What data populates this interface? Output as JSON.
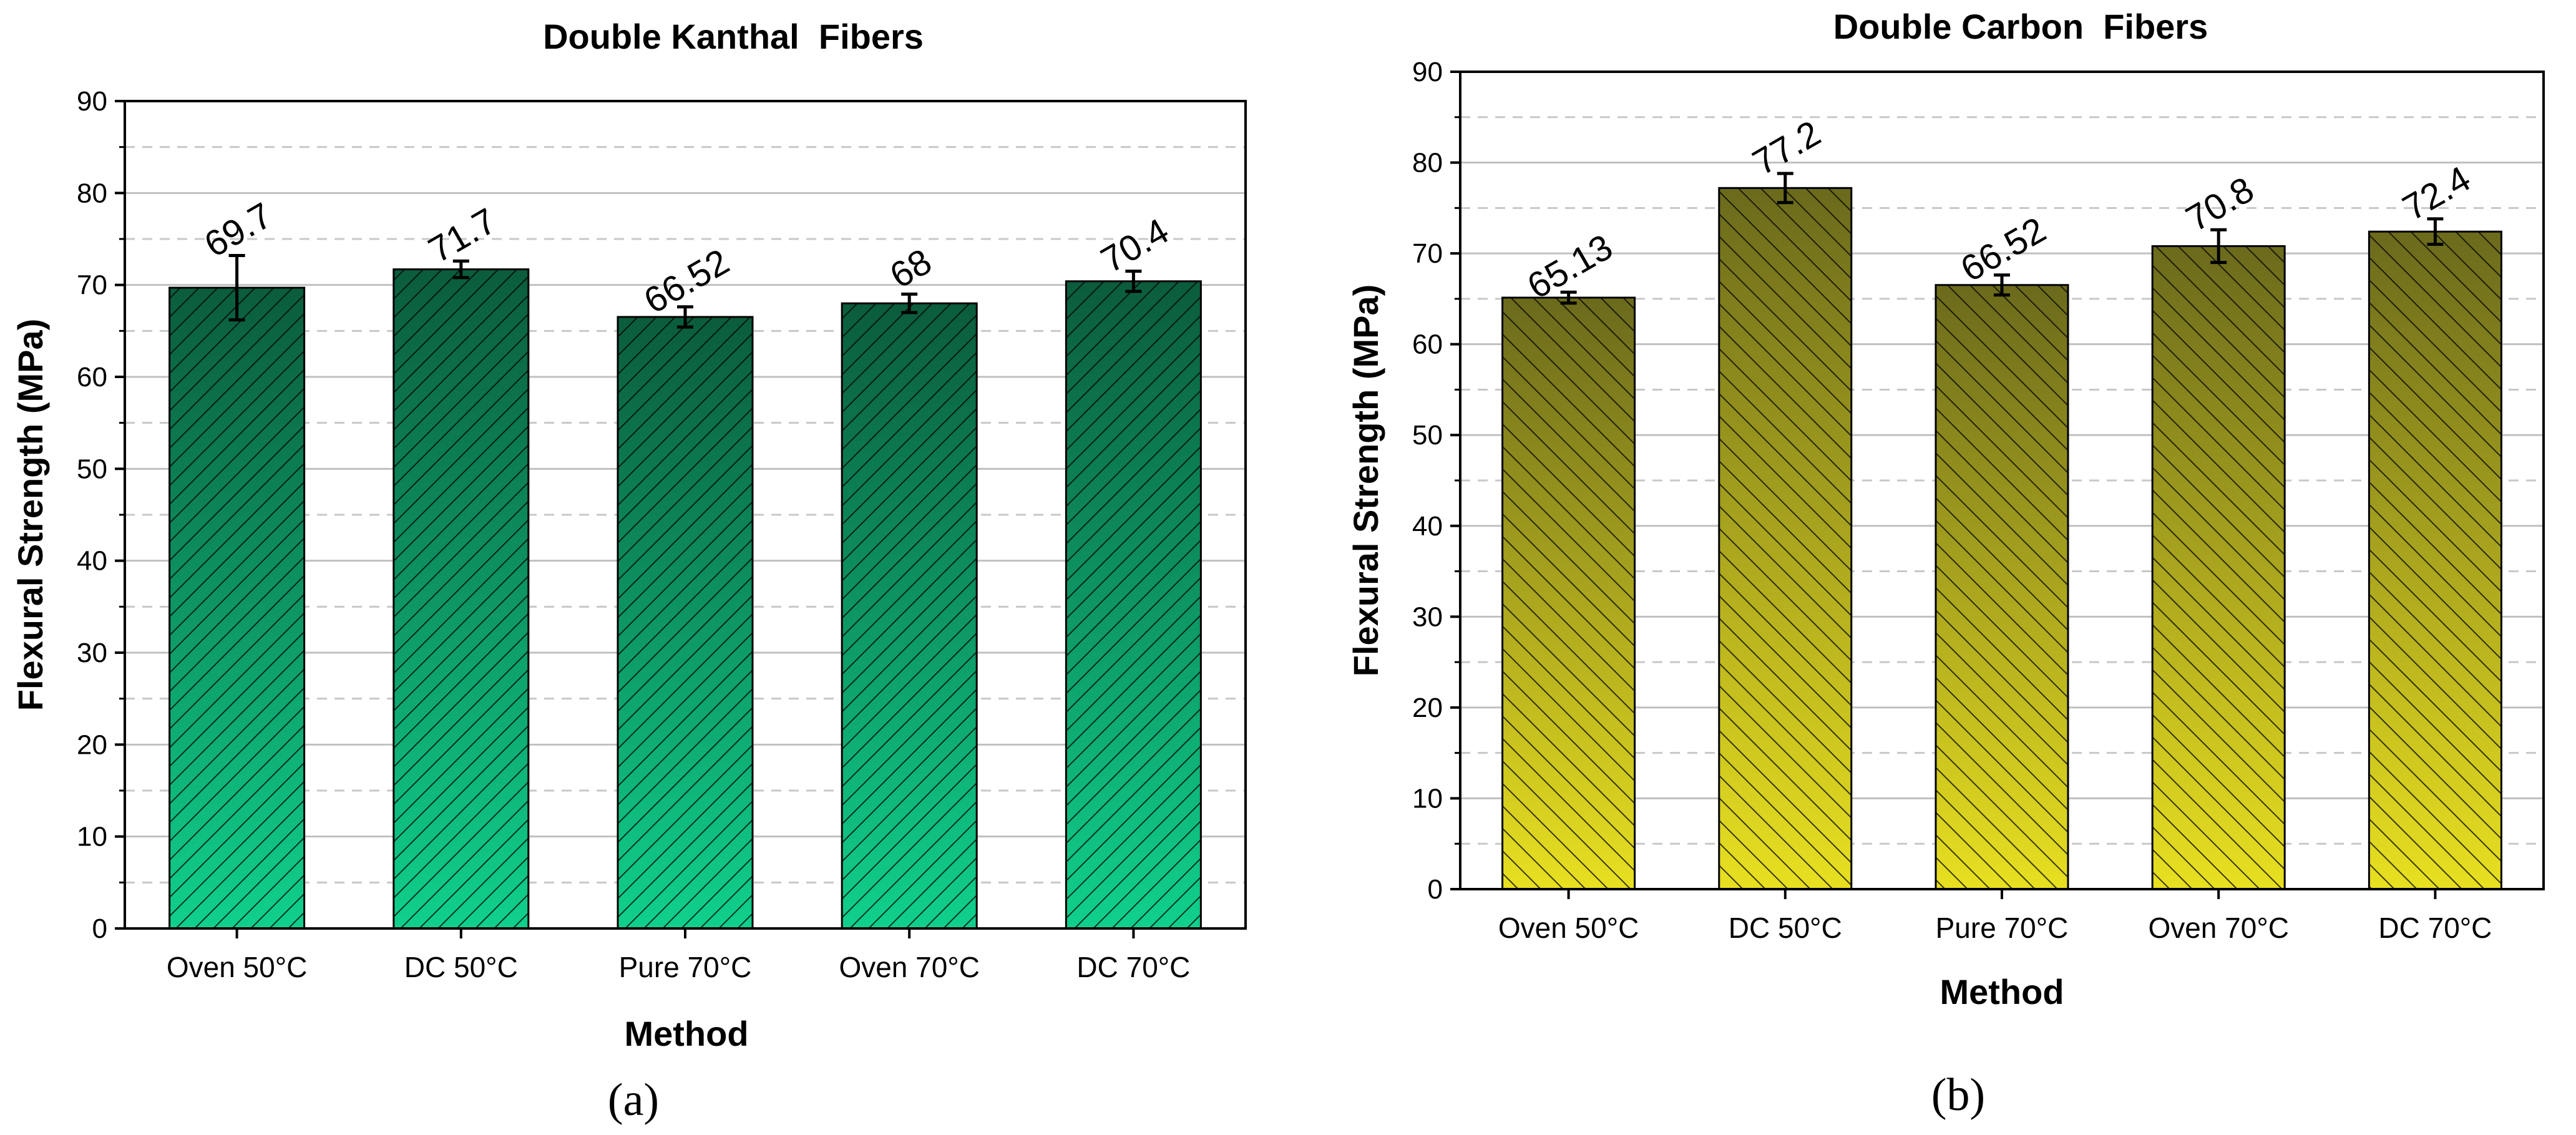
{
  "colors": {
    "chart_a_top": "#0b5c3c",
    "chart_a_bottom": "#10d08c",
    "chart_b_top": "#6b6a1c",
    "chart_b_bottom": "#e8e020",
    "major_grid": "#c0c0c0",
    "minor_grid": "#c8c8c8"
  },
  "chart_data": [
    {
      "type": "bar",
      "panel_label": "(a)",
      "title": "Double Kanthal  Fibers",
      "xlabel": "Method",
      "ylabel": "Flexural Strength (MPa)",
      "ylim": [
        0,
        90
      ],
      "yticks": [
        0,
        10,
        20,
        30,
        40,
        50,
        60,
        70,
        80,
        90
      ],
      "minor_gridlines": [
        5,
        15,
        25,
        35,
        45,
        55,
        65,
        75,
        85
      ],
      "categories": [
        "Oven 50°C",
        "DC 50°C",
        "Pure 70°C",
        "Oven 70°C",
        "DC 70°C"
      ],
      "values": [
        69.7,
        71.7,
        66.52,
        68,
        70.4
      ],
      "value_labels": [
        "69.7",
        "71.7",
        "66.52",
        "68",
        "70.4"
      ],
      "errors": [
        3.5,
        0.9,
        1.1,
        1.0,
        1.1
      ],
      "hatch": "diagonal",
      "grid": true
    },
    {
      "type": "bar",
      "panel_label": "(b)",
      "title": "Double Carbon  Fibers",
      "xlabel": "Method",
      "ylabel": "Flexural Strength (MPa)",
      "ylim": [
        0,
        90
      ],
      "yticks": [
        0,
        10,
        20,
        30,
        40,
        50,
        60,
        70,
        80,
        90
      ],
      "minor_gridlines": [
        5,
        15,
        25,
        35,
        45,
        55,
        65,
        75,
        85
      ],
      "categories": [
        "Oven 50°C",
        "DC 50°C",
        "Pure 70°C",
        "Oven 70°C",
        "DC 70°C"
      ],
      "values": [
        65.13,
        77.2,
        66.52,
        70.8,
        72.4
      ],
      "value_labels": [
        "65.13",
        "77.2",
        "66.52",
        "70.8",
        "72.4"
      ],
      "errors": [
        0.6,
        1.6,
        1.1,
        1.8,
        1.4
      ],
      "hatch": "anti-diagonal",
      "grid": true
    }
  ]
}
